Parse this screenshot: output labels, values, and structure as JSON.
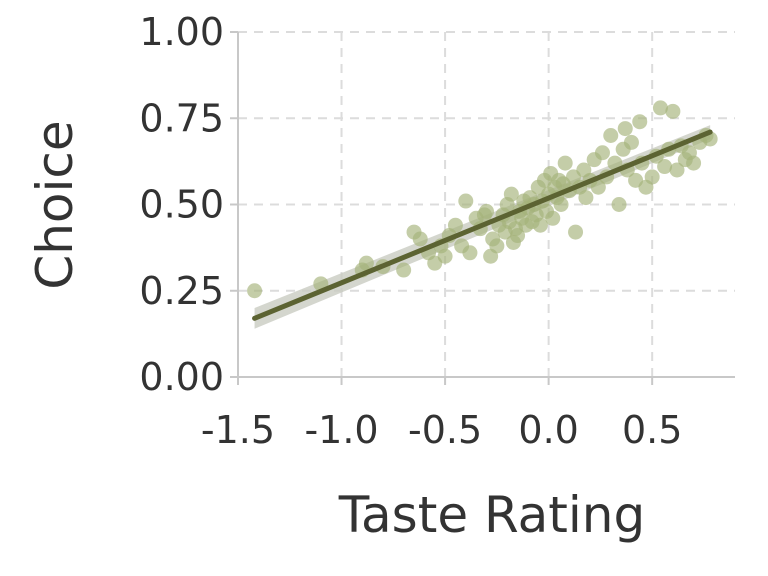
{
  "chart_data": {
    "type": "scatter",
    "title": "",
    "xlabel": "Taste Rating",
    "ylabel": "Choice",
    "xlim": [
      -1.5,
      0.9
    ],
    "ylim": [
      0.0,
      1.0
    ],
    "xticks": [
      -1.5,
      -1.0,
      -0.5,
      0.0,
      0.5
    ],
    "xtick_labels": [
      "-1.5",
      "-1.0",
      "-0.5",
      "0.0",
      "0.5"
    ],
    "yticks": [
      0.0,
      0.25,
      0.5,
      0.75,
      1.0
    ],
    "ytick_labels": [
      "0.00",
      "0.25",
      "0.50",
      "0.75",
      "1.00"
    ],
    "grid": true,
    "legend": "none",
    "colors": {
      "points": "#a5b27a",
      "fit_line": "#5c6332",
      "ci_band": "#c9ccc2",
      "grid": "#dcdcdc",
      "axis": "#c8c8c8",
      "text": "#333333"
    },
    "points": [
      {
        "x": -1.42,
        "y": 0.25
      },
      {
        "x": -1.1,
        "y": 0.27
      },
      {
        "x": -0.9,
        "y": 0.31
      },
      {
        "x": -0.88,
        "y": 0.33
      },
      {
        "x": -0.8,
        "y": 0.32
      },
      {
        "x": -0.7,
        "y": 0.31
      },
      {
        "x": -0.65,
        "y": 0.42
      },
      {
        "x": -0.62,
        "y": 0.4
      },
      {
        "x": -0.58,
        "y": 0.36
      },
      {
        "x": -0.55,
        "y": 0.33
      },
      {
        "x": -0.52,
        "y": 0.38
      },
      {
        "x": -0.5,
        "y": 0.35
      },
      {
        "x": -0.48,
        "y": 0.41
      },
      {
        "x": -0.45,
        "y": 0.44
      },
      {
        "x": -0.42,
        "y": 0.38
      },
      {
        "x": -0.4,
        "y": 0.51
      },
      {
        "x": -0.38,
        "y": 0.36
      },
      {
        "x": -0.35,
        "y": 0.46
      },
      {
        "x": -0.33,
        "y": 0.43
      },
      {
        "x": -0.31,
        "y": 0.47
      },
      {
        "x": -0.3,
        "y": 0.48
      },
      {
        "x": -0.28,
        "y": 0.35
      },
      {
        "x": -0.27,
        "y": 0.4
      },
      {
        "x": -0.25,
        "y": 0.38
      },
      {
        "x": -0.24,
        "y": 0.44
      },
      {
        "x": -0.22,
        "y": 0.47
      },
      {
        "x": -0.21,
        "y": 0.42
      },
      {
        "x": -0.2,
        "y": 0.5
      },
      {
        "x": -0.19,
        "y": 0.45
      },
      {
        "x": -0.18,
        "y": 0.53
      },
      {
        "x": -0.17,
        "y": 0.39
      },
      {
        "x": -0.16,
        "y": 0.43
      },
      {
        "x": -0.15,
        "y": 0.41
      },
      {
        "x": -0.14,
        "y": 0.48
      },
      {
        "x": -0.13,
        "y": 0.46
      },
      {
        "x": -0.12,
        "y": 0.51
      },
      {
        "x": -0.11,
        "y": 0.44
      },
      {
        "x": -0.1,
        "y": 0.49
      },
      {
        "x": -0.09,
        "y": 0.52
      },
      {
        "x": -0.08,
        "y": 0.45
      },
      {
        "x": -0.07,
        "y": 0.5
      },
      {
        "x": -0.06,
        "y": 0.47
      },
      {
        "x": -0.05,
        "y": 0.55
      },
      {
        "x": -0.04,
        "y": 0.44
      },
      {
        "x": -0.03,
        "y": 0.51
      },
      {
        "x": -0.02,
        "y": 0.57
      },
      {
        "x": -0.01,
        "y": 0.48
      },
      {
        "x": 0.0,
        "y": 0.53
      },
      {
        "x": 0.01,
        "y": 0.59
      },
      {
        "x": 0.02,
        "y": 0.46
      },
      {
        "x": 0.03,
        "y": 0.55
      },
      {
        "x": 0.04,
        "y": 0.52
      },
      {
        "x": 0.05,
        "y": 0.57
      },
      {
        "x": 0.06,
        "y": 0.5
      },
      {
        "x": 0.07,
        "y": 0.56
      },
      {
        "x": 0.08,
        "y": 0.62
      },
      {
        "x": 0.1,
        "y": 0.54
      },
      {
        "x": 0.12,
        "y": 0.58
      },
      {
        "x": 0.13,
        "y": 0.42
      },
      {
        "x": 0.15,
        "y": 0.55
      },
      {
        "x": 0.17,
        "y": 0.6
      },
      {
        "x": 0.18,
        "y": 0.52
      },
      {
        "x": 0.2,
        "y": 0.57
      },
      {
        "x": 0.22,
        "y": 0.63
      },
      {
        "x": 0.24,
        "y": 0.55
      },
      {
        "x": 0.26,
        "y": 0.65
      },
      {
        "x": 0.28,
        "y": 0.58
      },
      {
        "x": 0.3,
        "y": 0.7
      },
      {
        "x": 0.32,
        "y": 0.62
      },
      {
        "x": 0.34,
        "y": 0.5
      },
      {
        "x": 0.36,
        "y": 0.66
      },
      {
        "x": 0.37,
        "y": 0.72
      },
      {
        "x": 0.38,
        "y": 0.6
      },
      {
        "x": 0.4,
        "y": 0.68
      },
      {
        "x": 0.42,
        "y": 0.57
      },
      {
        "x": 0.44,
        "y": 0.74
      },
      {
        "x": 0.45,
        "y": 0.62
      },
      {
        "x": 0.47,
        "y": 0.55
      },
      {
        "x": 0.5,
        "y": 0.58
      },
      {
        "x": 0.52,
        "y": 0.64
      },
      {
        "x": 0.54,
        "y": 0.78
      },
      {
        "x": 0.56,
        "y": 0.61
      },
      {
        "x": 0.58,
        "y": 0.66
      },
      {
        "x": 0.6,
        "y": 0.77
      },
      {
        "x": 0.62,
        "y": 0.6
      },
      {
        "x": 0.64,
        "y": 0.67
      },
      {
        "x": 0.66,
        "y": 0.63
      },
      {
        "x": 0.68,
        "y": 0.65
      },
      {
        "x": 0.7,
        "y": 0.62
      },
      {
        "x": 0.73,
        "y": 0.68
      },
      {
        "x": 0.76,
        "y": 0.7
      },
      {
        "x": 0.78,
        "y": 0.69
      }
    ],
    "fit": {
      "x": [
        -1.42,
        0.78
      ],
      "y": [
        0.17,
        0.71
      ],
      "ci_lower": [
        0.14,
        0.69
      ],
      "ci_upper": [
        0.2,
        0.73
      ]
    }
  }
}
